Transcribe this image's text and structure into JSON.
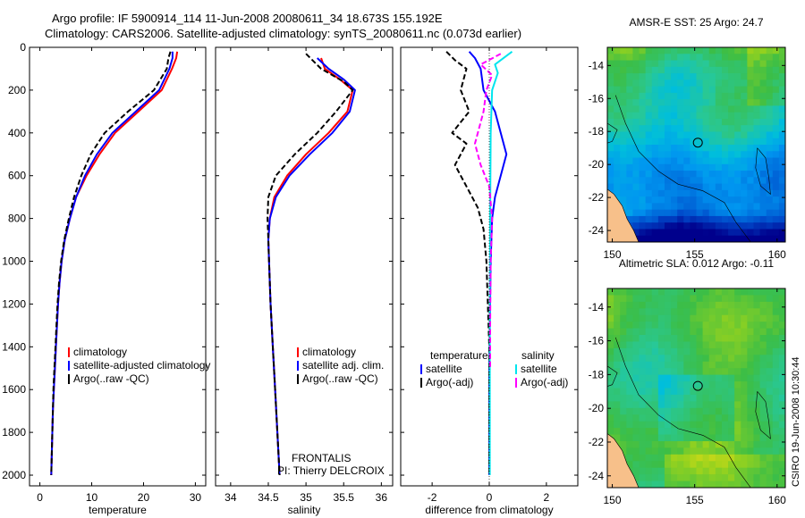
{
  "header": {
    "line1": "Argo profile: IF 5900914_114 11-Jun-2008 20080611_34 18.673S 155.192E",
    "line2": "Climatology: CARS2006. Satellite-adjusted climatology: synTS_20080611.nc (0.073d earlier)"
  },
  "depth_axis": {
    "ylim": [
      0,
      2050
    ],
    "ticks": [
      "0",
      "200",
      "400",
      "600",
      "800",
      "1000",
      "1200",
      "1400",
      "1600",
      "1800",
      "2000"
    ],
    "tick_values": [
      0,
      200,
      400,
      600,
      800,
      1000,
      1200,
      1400,
      1600,
      1800,
      2000
    ]
  },
  "colors": {
    "climatology": "#ff0000",
    "satellite": "#0000ff",
    "argo": "#000000",
    "sal_satellite": "#00e5ee",
    "sal_argo": "#ff00ff",
    "land": "#f7c08a"
  },
  "chart_data": [
    {
      "type": "line",
      "id": "temperature",
      "xlabel": "temperature",
      "xlim": [
        -2,
        32
      ],
      "xticks": [
        0,
        10,
        20,
        30
      ],
      "xtick_labels": [
        "0",
        "10",
        "20",
        "30"
      ],
      "legend": [
        "climatology",
        "satellite-adjusted climatology",
        "Argo(..raw -QC)"
      ],
      "series": [
        {
          "name": "climatology",
          "color": "#ff0000",
          "dash": "",
          "points": [
            [
              26.5,
              20
            ],
            [
              26.3,
              50
            ],
            [
              25.5,
              100
            ],
            [
              23.5,
              200
            ],
            [
              19,
              300
            ],
            [
              14.5,
              400
            ],
            [
              11.5,
              500
            ],
            [
              9,
              600
            ],
            [
              7,
              700
            ],
            [
              5.8,
              800
            ],
            [
              4.8,
              900
            ],
            [
              4.2,
              1000
            ],
            [
              3.8,
              1100
            ],
            [
              3.5,
              1200
            ],
            [
              3.3,
              1300
            ],
            [
              3.1,
              1400
            ],
            [
              2.9,
              1500
            ],
            [
              2.7,
              1600
            ],
            [
              2.5,
              1700
            ],
            [
              2.4,
              1800
            ],
            [
              2.3,
              1900
            ],
            [
              2.2,
              2000
            ]
          ]
        },
        {
          "name": "satellite-adjusted climatology",
          "color": "#0000ff",
          "dash": "",
          "points": [
            [
              25.6,
              20
            ],
            [
              25.6,
              50
            ],
            [
              25,
              100
            ],
            [
              23,
              200
            ],
            [
              18.5,
              300
            ],
            [
              14,
              400
            ],
            [
              11,
              500
            ],
            [
              8.7,
              600
            ],
            [
              7,
              700
            ],
            [
              5.8,
              800
            ],
            [
              4.8,
              900
            ],
            [
              4.2,
              1000
            ],
            [
              3.8,
              1100
            ],
            [
              3.5,
              1200
            ],
            [
              3.3,
              1300
            ],
            [
              3.1,
              1400
            ],
            [
              2.9,
              1500
            ],
            [
              2.7,
              1600
            ],
            [
              2.5,
              1700
            ],
            [
              2.4,
              1800
            ],
            [
              2.3,
              1900
            ],
            [
              2.2,
              2000
            ]
          ]
        },
        {
          "name": "Argo(..raw -QC)",
          "color": "#000000",
          "dash": "6,3",
          "points": [
            [
              25.2,
              20
            ],
            [
              24.8,
              50
            ],
            [
              24.5,
              100
            ],
            [
              22,
              200
            ],
            [
              17,
              300
            ],
            [
              12.5,
              400
            ],
            [
              9.8,
              500
            ],
            [
              8,
              600
            ],
            [
              6.6,
              700
            ],
            [
              5.6,
              800
            ],
            [
              4.7,
              900
            ],
            [
              4.1,
              1000
            ],
            [
              3.7,
              1100
            ],
            [
              3.4,
              1200
            ],
            [
              3.2,
              1300
            ],
            [
              3,
              1400
            ],
            [
              2.8,
              1500
            ],
            [
              2.6,
              1600
            ],
            [
              2.5,
              1700
            ],
            [
              2.4,
              1800
            ],
            [
              2.3,
              1900
            ],
            [
              2.2,
              2000
            ]
          ]
        }
      ]
    },
    {
      "type": "line",
      "id": "salinity",
      "xlabel": "salinity",
      "xlim": [
        33.8,
        36.15
      ],
      "xticks": [
        34,
        34.5,
        35,
        35.5,
        36
      ],
      "xtick_labels": [
        "34",
        "34.5",
        "35",
        "35.5",
        "36"
      ],
      "legend": [
        "climatology",
        "satellite adj. clim.",
        "Argo(..raw -QC)"
      ],
      "annotation": [
        "FRONTALIS",
        "PI: Thierry DELCROIX"
      ],
      "series": [
        {
          "name": "climatology",
          "color": "#ff0000",
          "dash": "",
          "points": [
            [
              35.2,
              50
            ],
            [
              35.25,
              100
            ],
            [
              35.45,
              150
            ],
            [
              35.62,
              200
            ],
            [
              35.55,
              300
            ],
            [
              35.3,
              400
            ],
            [
              35.0,
              500
            ],
            [
              34.75,
              600
            ],
            [
              34.58,
              700
            ],
            [
              34.52,
              800
            ],
            [
              34.5,
              900
            ],
            [
              34.51,
              1000
            ],
            [
              34.53,
              1200
            ],
            [
              34.56,
              1400
            ],
            [
              34.59,
              1600
            ],
            [
              34.62,
              1800
            ],
            [
              34.65,
              2000
            ]
          ]
        },
        {
          "name": "satellite adj. clim.",
          "color": "#0000ff",
          "dash": "",
          "points": [
            [
              35.15,
              50
            ],
            [
              35.3,
              100
            ],
            [
              35.5,
              150
            ],
            [
              35.65,
              200
            ],
            [
              35.58,
              300
            ],
            [
              35.35,
              400
            ],
            [
              35.05,
              500
            ],
            [
              34.78,
              600
            ],
            [
              34.6,
              700
            ],
            [
              34.52,
              800
            ],
            [
              34.5,
              900
            ],
            [
              34.51,
              1000
            ],
            [
              34.53,
              1200
            ],
            [
              34.56,
              1400
            ],
            [
              34.59,
              1600
            ],
            [
              34.62,
              1800
            ],
            [
              34.65,
              2000
            ]
          ]
        },
        {
          "name": "Argo(..raw -QC)",
          "color": "#000000",
          "dash": "6,3",
          "points": [
            [
              35.0,
              30
            ],
            [
              35.2,
              100
            ],
            [
              35.5,
              160
            ],
            [
              35.62,
              200
            ],
            [
              35.4,
              300
            ],
            [
              35.15,
              400
            ],
            [
              34.85,
              500
            ],
            [
              34.6,
              600
            ],
            [
              34.5,
              700
            ],
            [
              34.49,
              800
            ],
            [
              34.5,
              900
            ],
            [
              34.51,
              1000
            ],
            [
              34.53,
              1200
            ],
            [
              34.56,
              1400
            ],
            [
              34.59,
              1600
            ],
            [
              34.62,
              1800
            ],
            [
              34.65,
              2000
            ]
          ]
        }
      ]
    },
    {
      "type": "line",
      "id": "difference",
      "xlabel": "difference from climatology",
      "xlim": [
        -3.1,
        3.1
      ],
      "xticks": [
        -2,
        0,
        2
      ],
      "xtick_labels": [
        "-2",
        "0",
        "2"
      ],
      "legend_temperature": {
        "title": "temperature",
        "items": [
          "satellite",
          "Argo(-adj)"
        ]
      },
      "legend_salinity": {
        "title": "salinity",
        "items": [
          "satellite",
          "Argo(-adj)"
        ]
      },
      "series": [
        {
          "name": "temperature satellite",
          "color": "#0000ff",
          "dash": "",
          "points": [
            [
              -0.7,
              20
            ],
            [
              -0.5,
              50
            ],
            [
              -0.3,
              100
            ],
            [
              -0.2,
              200
            ],
            [
              0.2,
              300
            ],
            [
              0.4,
              400
            ],
            [
              0.6,
              500
            ],
            [
              0.4,
              600
            ],
            [
              0.2,
              700
            ],
            [
              0.1,
              800
            ],
            [
              0.05,
              1000
            ],
            [
              0,
              1500
            ],
            [
              0,
              2000
            ]
          ]
        },
        {
          "name": "temperature Argo(-adj)",
          "color": "#000000",
          "dash": "6,3",
          "points": [
            [
              -1.5,
              20
            ],
            [
              -1.2,
              60
            ],
            [
              -0.8,
              100
            ],
            [
              -1.0,
              200
            ],
            [
              -0.7,
              300
            ],
            [
              -1.3,
              400
            ],
            [
              -0.8,
              450
            ],
            [
              -1.2,
              550
            ],
            [
              -0.8,
              650
            ],
            [
              -0.4,
              750
            ],
            [
              -0.2,
              850
            ],
            [
              -0.1,
              1000
            ],
            [
              0,
              1400
            ],
            [
              0,
              2000
            ]
          ]
        },
        {
          "name": "salinity satellite",
          "color": "#00e5ee",
          "dash": "",
          "points": [
            [
              0.8,
              20
            ],
            [
              0.2,
              80
            ],
            [
              0.3,
              120
            ],
            [
              0.1,
              200
            ],
            [
              0.05,
              400
            ],
            [
              0.03,
              800
            ],
            [
              0.02,
              1200
            ],
            [
              0.02,
              2000
            ]
          ]
        },
        {
          "name": "salinity Argo(-adj)",
          "color": "#ff00ff",
          "dash": "6,3",
          "points": [
            [
              0.4,
              30
            ],
            [
              -0.3,
              80
            ],
            [
              0.1,
              130
            ],
            [
              -0.1,
              200
            ],
            [
              -0.2,
              300
            ],
            [
              -0.5,
              450
            ],
            [
              -0.3,
              550
            ],
            [
              0,
              650
            ],
            [
              0.1,
              800
            ],
            [
              0.05,
              1000
            ],
            [
              0.03,
              1300
            ],
            [
              0.03,
              1500
            ]
          ]
        }
      ]
    }
  ],
  "maps": [
    {
      "id": "sst",
      "title": "AMSR-E SST: 25 Argo: 24.7",
      "xlim": [
        149.7,
        160.5
      ],
      "ylim": [
        -24.7,
        -12.9
      ],
      "xticks": [
        150,
        155,
        160
      ],
      "xtick_labels": [
        "150",
        "155",
        "160"
      ],
      "yticks": [
        -14,
        -16,
        -18,
        -20,
        -22,
        -24
      ],
      "ytick_labels": [
        "-14",
        "-16",
        "-18",
        "-20",
        "-22",
        "-24"
      ],
      "argo_location": [
        155.192,
        -18.673
      ]
    },
    {
      "id": "sla",
      "title": "Altimetric SLA: 0.012 Argo: -0.11",
      "xlim": [
        149.7,
        160.5
      ],
      "ylim": [
        -24.7,
        -12.9
      ],
      "xticks": [
        150,
        155,
        160
      ],
      "xtick_labels": [
        "150",
        "155",
        "160"
      ],
      "yticks": [
        -14,
        -16,
        -18,
        -20,
        -22,
        -24
      ],
      "ytick_labels": [
        "-14",
        "-16",
        "-18",
        "-20",
        "-22",
        "-24"
      ],
      "argo_location": [
        155.192,
        -18.673
      ]
    }
  ],
  "footer": {
    "stamp": "CSIRO 19-Jun-2008 10:30:44"
  }
}
